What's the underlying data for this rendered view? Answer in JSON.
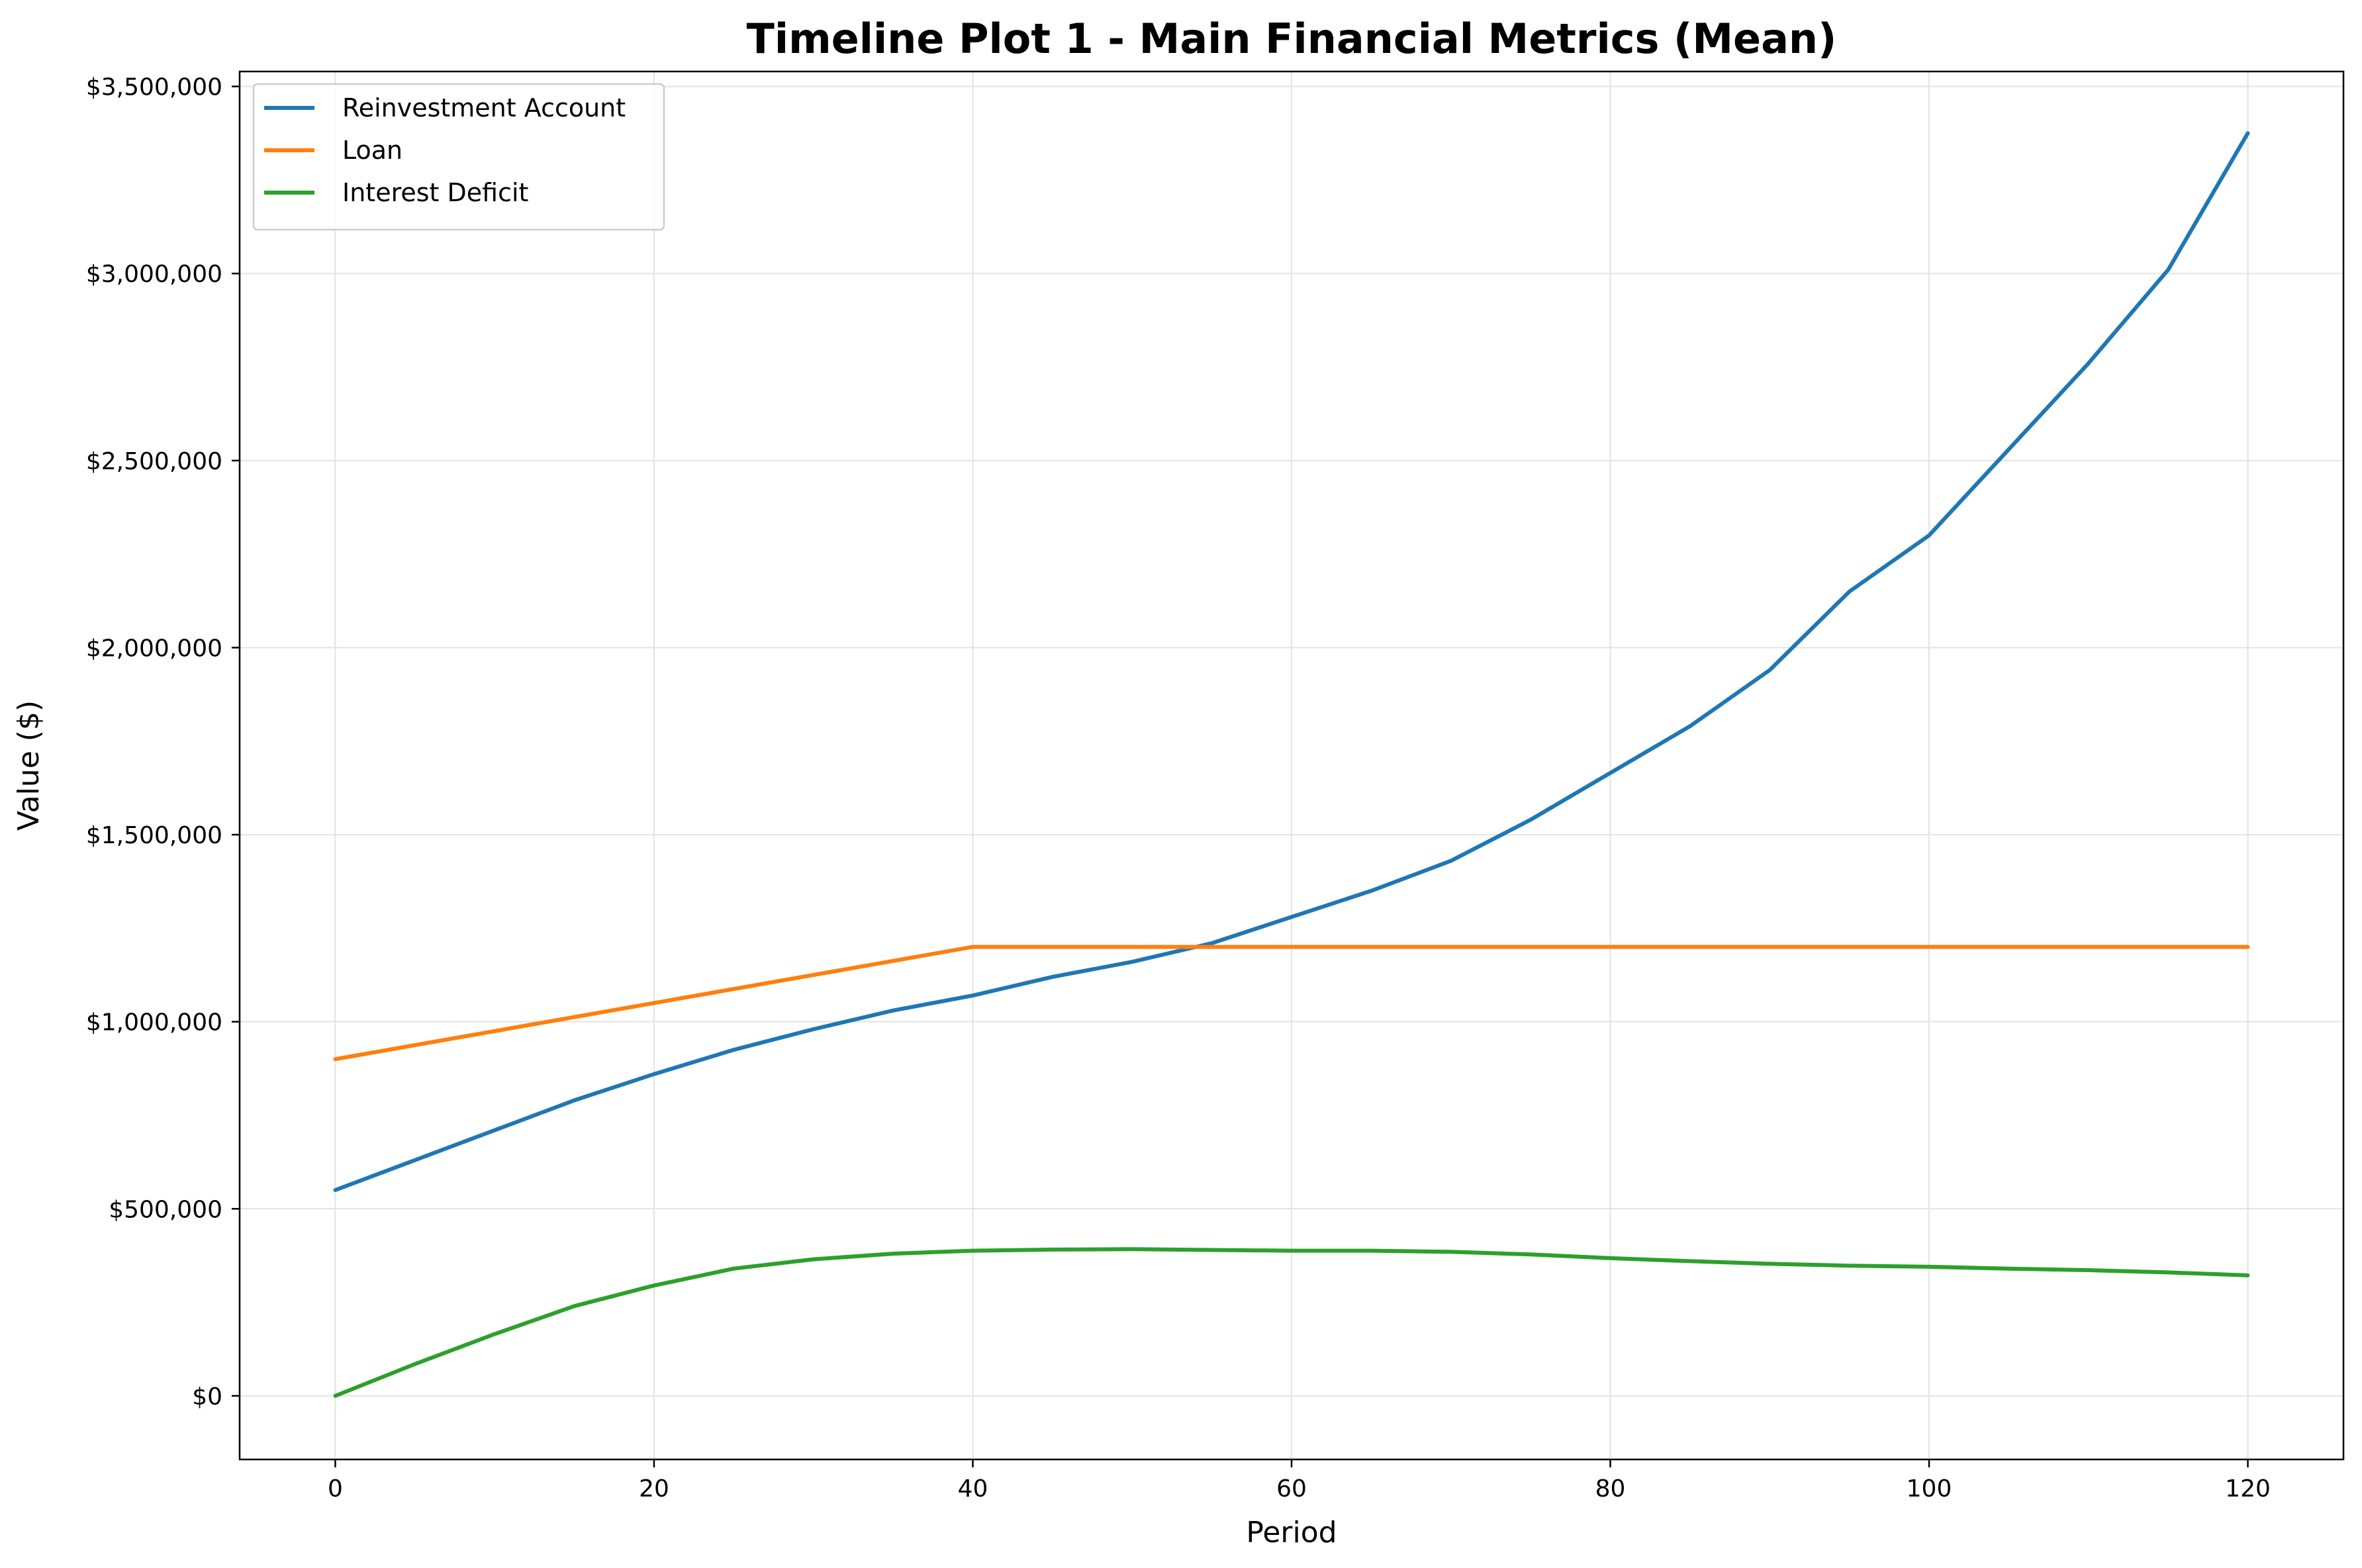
{
  "chart_data": {
    "type": "line",
    "title": "Timeline Plot 1 - Main Financial Metrics (Mean)",
    "xlabel": "Period",
    "ylabel": "Value ($)",
    "xlim": [
      -6,
      126
    ],
    "ylim": [
      -170000,
      3540000
    ],
    "xticks": [
      0,
      20,
      40,
      60,
      80,
      100,
      120
    ],
    "xtick_labels": [
      "0",
      "20",
      "40",
      "60",
      "80",
      "100",
      "120"
    ],
    "yticks": [
      0,
      500000,
      1000000,
      1500000,
      2000000,
      2500000,
      3000000,
      3500000
    ],
    "ytick_labels": [
      "$0",
      "$500,000",
      "$1,000,000",
      "$1,500,000",
      "$2,000,000",
      "$2,500,000",
      "$3,000,000",
      "$3,500,000"
    ],
    "grid": true,
    "legend_position": "top-left",
    "series": [
      {
        "name": "Reinvestment Account",
        "color": "#1f77b4",
        "x": [
          0,
          5,
          10,
          15,
          20,
          25,
          30,
          35,
          40,
          45,
          50,
          55,
          60,
          65,
          70,
          75,
          80,
          85,
          90,
          95,
          100,
          105,
          110,
          115,
          120
        ],
        "y": [
          550000,
          630000,
          710000,
          790000,
          860000,
          925000,
          980000,
          1030000,
          1070000,
          1120000,
          1160000,
          1210000,
          1280000,
          1350000,
          1430000,
          1540000,
          1665000,
          1790000,
          1940000,
          2150000,
          2300000,
          2530000,
          2760000,
          3010000,
          3375000
        ]
      },
      {
        "name": "Loan",
        "color": "#ff7f0e",
        "x": [
          0,
          40,
          120
        ],
        "y": [
          900000,
          1200000,
          1200000
        ]
      },
      {
        "name": "Interest Deficit",
        "color": "#2ca02c",
        "x": [
          0,
          5,
          10,
          15,
          20,
          25,
          30,
          35,
          40,
          45,
          50,
          55,
          60,
          65,
          70,
          75,
          80,
          85,
          90,
          95,
          100,
          105,
          110,
          115,
          120
        ],
        "y": [
          0,
          85000,
          165000,
          240000,
          295000,
          340000,
          365000,
          380000,
          388000,
          391000,
          392000,
          390000,
          388000,
          388000,
          385000,
          378000,
          368000,
          360000,
          353000,
          348000,
          345000,
          340000,
          336000,
          330000,
          322000
        ]
      }
    ]
  }
}
